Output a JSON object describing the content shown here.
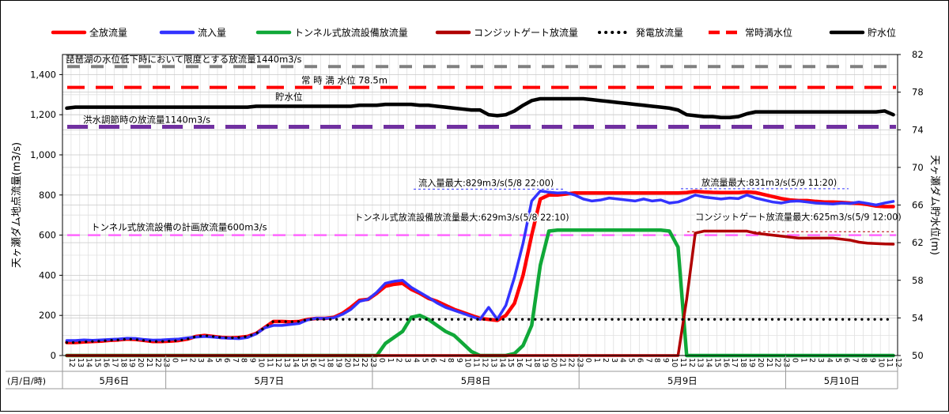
{
  "chart_data": {
    "type": "line",
    "left_axis": {
      "label": "天ヶ瀬ダム地点流量(m3/s)",
      "ylim": [
        0,
        1500
      ],
      "ticks": [
        0,
        200,
        400,
        600,
        800,
        1000,
        1200,
        1400
      ],
      "tick_labels": [
        "0",
        "200",
        "400",
        "600",
        "800",
        "1,000",
        "1,200",
        "1,400"
      ]
    },
    "right_axis": {
      "label": "天ヶ瀬ダム貯水位(m)",
      "ylim": [
        50,
        82
      ],
      "ticks": [
        50,
        54,
        58,
        62,
        66,
        70,
        74,
        78,
        82
      ],
      "tick_labels": [
        "50",
        "54",
        "58",
        "62",
        "66",
        "70",
        "74",
        "78",
        "82"
      ]
    },
    "x_axis": {
      "label": "(月/日/時)",
      "hours": [
        "12",
        "13",
        "14",
        "15",
        "16",
        "17",
        "18",
        "19",
        "20",
        "21",
        "22",
        "23",
        "0",
        "1",
        "2",
        "3",
        "4",
        "5",
        "6",
        "7",
        "8",
        "9",
        "10",
        "11",
        "12",
        "13",
        "14",
        "15",
        "16",
        "17",
        "18",
        "19",
        "20",
        "21",
        "22",
        "23",
        "0",
        "1",
        "2",
        "3",
        "4",
        "5",
        "6",
        "7",
        "8",
        "9",
        "10",
        "11",
        "12",
        "13",
        "14",
        "15",
        "16",
        "17",
        "18",
        "19",
        "20",
        "21",
        "22",
        "23",
        "0",
        "1",
        "2",
        "3",
        "4",
        "5",
        "6",
        "7",
        "8",
        "9",
        "10",
        "11",
        "12",
        "13",
        "14",
        "15",
        "16",
        "17",
        "18",
        "19",
        "20",
        "21",
        "22",
        "23",
        "0",
        "1",
        "2",
        "3",
        "4",
        "5",
        "6",
        "7",
        "8",
        "9",
        "10",
        "11",
        "12"
      ],
      "days": [
        {
          "label": "5月6日",
          "start": 0,
          "end": 12
        },
        {
          "label": "5月7日",
          "start": 12,
          "end": 36
        },
        {
          "label": "5月8日",
          "start": 36,
          "end": 60
        },
        {
          "label": "5月9日",
          "start": 60,
          "end": 84
        },
        {
          "label": "5月10日",
          "start": 84,
          "end": 97
        }
      ]
    },
    "legend": {
      "position": "top",
      "items": [
        {
          "label": "全放流量",
          "color": "#ff0000",
          "style": "solid"
        },
        {
          "label": "流入量",
          "color": "#3333ff",
          "style": "solid"
        },
        {
          "label": "トンネル式放流設備放流量",
          "color": "#10a838",
          "style": "solid"
        },
        {
          "label": "コンジットゲート放流量",
          "color": "#b00000",
          "style": "solid"
        },
        {
          "label": "発電放流量",
          "color": "#000000",
          "style": "dotted"
        },
        {
          "label": "常時満水位",
          "color": "#ff0000",
          "style": "dashed"
        },
        {
          "label": "貯水位",
          "color": "#000000",
          "style": "solid"
        }
      ]
    },
    "reference_lines": [
      {
        "label": "琵琶湖の水位低下時において限度とする放流量1440m3/s",
        "value": 1440,
        "axis": "left",
        "color": "#808080"
      },
      {
        "label": "常 時 満 水位 78.5m",
        "value": 78.5,
        "axis": "right",
        "color": "#ff0000"
      },
      {
        "label": "洪水調節時の放流量1140m3/s",
        "value": 1140,
        "axis": "left",
        "color": "#7030a0"
      },
      {
        "label": "トンネル式放流設備の計画放流量600m3/s",
        "value": 600,
        "axis": "left",
        "color": "#ff66ff"
      }
    ],
    "annotations": [
      {
        "label": "流入量最大:829m3/s(5/8 22:00)",
        "x": 34,
        "y": 829
      },
      {
        "label": "放流量最大:831m3/s(5/9 11:20)",
        "x": 72,
        "y": 831
      },
      {
        "label": "トンネル式放流設備放流量最大:629m3/s(5/8 22:10)",
        "x": 34.2,
        "y": 629
      },
      {
        "label": "コンジットゲート放流量最大:625m3/s(5/9 12:00)",
        "x": 72,
        "y": 625
      }
    ],
    "annotation_labels": {
      "storage_level": "貯水位"
    },
    "series": [
      {
        "name": "全放流量",
        "axis": "left",
        "values": [
          65,
          65,
          68,
          70,
          72,
          76,
          78,
          82,
          80,
          75,
          70,
          70,
          72,
          75,
          82,
          95,
          100,
          95,
          90,
          88,
          90,
          95,
          110,
          140,
          170,
          170,
          168,
          170,
          180,
          185,
          185,
          190,
          210,
          240,
          275,
          280,
          310,
          345,
          355,
          360,
          330,
          310,
          285,
          270,
          250,
          230,
          215,
          200,
          185,
          180,
          175,
          200,
          260,
          400,
          600,
          780,
          800,
          800,
          805,
          810,
          810,
          810,
          810,
          810,
          810,
          810,
          810,
          810,
          810,
          810,
          810,
          810,
          812,
          818,
          815,
          813,
          812,
          812,
          812,
          815,
          812,
          802,
          792,
          782,
          775,
          772,
          772,
          768,
          765,
          765,
          763,
          760,
          758,
          753,
          745,
          742,
          742
        ]
      },
      {
        "name": "流入量",
        "axis": "left",
        "values": [
          75,
          75,
          78,
          76,
          78,
          80,
          82,
          86,
          85,
          80,
          77,
          78,
          80,
          82,
          88,
          92,
          95,
          92,
          88,
          86,
          84,
          90,
          108,
          138,
          150,
          150,
          155,
          160,
          178,
          186,
          185,
          188,
          205,
          230,
          270,
          280,
          315,
          360,
          370,
          375,
          340,
          315,
          290,
          262,
          240,
          225,
          210,
          195,
          180,
          240,
          180,
          250,
          390,
          560,
          770,
          820,
          814,
          810,
          812,
          800,
          780,
          770,
          775,
          785,
          780,
          775,
          770,
          780,
          770,
          775,
          760,
          765,
          780,
          800,
          790,
          785,
          780,
          785,
          782,
          800,
          785,
          775,
          765,
          760,
          768,
          770,
          765,
          760,
          758,
          755,
          760,
          758,
          765,
          758,
          750,
          760,
          768
        ]
      },
      {
        "name": "トンネル式放流設備放流量",
        "axis": "left",
        "values": [
          0,
          0,
          0,
          0,
          0,
          0,
          0,
          0,
          0,
          0,
          0,
          0,
          0,
          0,
          0,
          0,
          0,
          0,
          0,
          0,
          0,
          0,
          0,
          0,
          0,
          0,
          0,
          0,
          0,
          0,
          0,
          0,
          0,
          0,
          0,
          0,
          0,
          60,
          90,
          120,
          190,
          200,
          180,
          150,
          120,
          100,
          60,
          20,
          0,
          0,
          0,
          0,
          10,
          50,
          150,
          450,
          620,
          625,
          625,
          625,
          625,
          625,
          625,
          625,
          625,
          625,
          625,
          625,
          625,
          625,
          620,
          540,
          0,
          0,
          0,
          0,
          0,
          0,
          0,
          0,
          0,
          0,
          0,
          0,
          0,
          0,
          0,
          0,
          0,
          0,
          0,
          0,
          0,
          0,
          0,
          0,
          0
        ]
      },
      {
        "name": "コンジットゲート放流量",
        "axis": "left",
        "values": [
          0,
          0,
          0,
          0,
          0,
          0,
          0,
          0,
          0,
          0,
          0,
          0,
          0,
          0,
          0,
          0,
          0,
          0,
          0,
          0,
          0,
          0,
          0,
          0,
          0,
          0,
          0,
          0,
          0,
          0,
          0,
          0,
          0,
          0,
          0,
          0,
          0,
          0,
          0,
          0,
          0,
          0,
          0,
          0,
          0,
          0,
          0,
          0,
          0,
          0,
          0,
          0,
          0,
          0,
          0,
          0,
          0,
          0,
          0,
          0,
          0,
          0,
          0,
          0,
          0,
          0,
          0,
          0,
          0,
          0,
          0,
          0,
          280,
          610,
          620,
          620,
          620,
          620,
          620,
          620,
          610,
          605,
          600,
          595,
          590,
          585,
          585,
          585,
          585,
          585,
          580,
          575,
          565,
          560,
          558,
          556,
          555
        ]
      },
      {
        "name": "発電放流量",
        "axis": "left",
        "values": [
          65,
          65,
          68,
          70,
          72,
          76,
          78,
          82,
          80,
          75,
          70,
          70,
          72,
          75,
          82,
          95,
          100,
          95,
          90,
          88,
          90,
          95,
          110,
          140,
          170,
          170,
          168,
          170,
          180,
          180,
          180,
          180,
          180,
          180,
          180,
          180,
          180,
          180,
          180,
          180,
          180,
          180,
          180,
          180,
          180,
          180,
          180,
          180,
          180,
          180,
          180,
          180,
          180,
          180,
          180,
          180,
          180,
          180,
          180,
          180,
          180,
          180,
          180,
          180,
          180,
          180,
          180,
          180,
          180,
          180,
          180,
          180,
          180,
          180,
          180,
          180,
          180,
          180,
          180,
          180,
          180,
          180,
          180,
          180,
          180,
          180,
          180,
          180,
          180,
          180,
          180,
          180,
          180,
          180,
          180,
          180,
          180
        ]
      },
      {
        "name": "貯水位",
        "axis": "right",
        "values": [
          76.3,
          76.4,
          76.4,
          76.4,
          76.4,
          76.4,
          76.4,
          76.4,
          76.4,
          76.4,
          76.4,
          76.4,
          76.4,
          76.4,
          76.4,
          76.4,
          76.4,
          76.4,
          76.4,
          76.4,
          76.4,
          76.4,
          76.5,
          76.5,
          76.5,
          76.5,
          76.5,
          76.5,
          76.5,
          76.5,
          76.5,
          76.5,
          76.5,
          76.5,
          76.6,
          76.6,
          76.6,
          76.7,
          76.7,
          76.7,
          76.7,
          76.6,
          76.6,
          76.5,
          76.4,
          76.3,
          76.2,
          76.1,
          76.1,
          75.6,
          75.5,
          75.6,
          76.0,
          76.6,
          77.1,
          77.3,
          77.3,
          77.3,
          77.3,
          77.3,
          77.3,
          77.2,
          77.1,
          77.0,
          76.9,
          76.8,
          76.7,
          76.6,
          76.5,
          76.4,
          76.3,
          76.1,
          75.6,
          75.5,
          75.4,
          75.4,
          75.3,
          75.3,
          75.4,
          75.7,
          75.9,
          75.9,
          75.9,
          75.9,
          75.9,
          75.9,
          75.9,
          75.9,
          75.9,
          75.9,
          75.9,
          75.9,
          75.9,
          75.9,
          75.9,
          76.0,
          75.6
        ]
      }
    ]
  }
}
